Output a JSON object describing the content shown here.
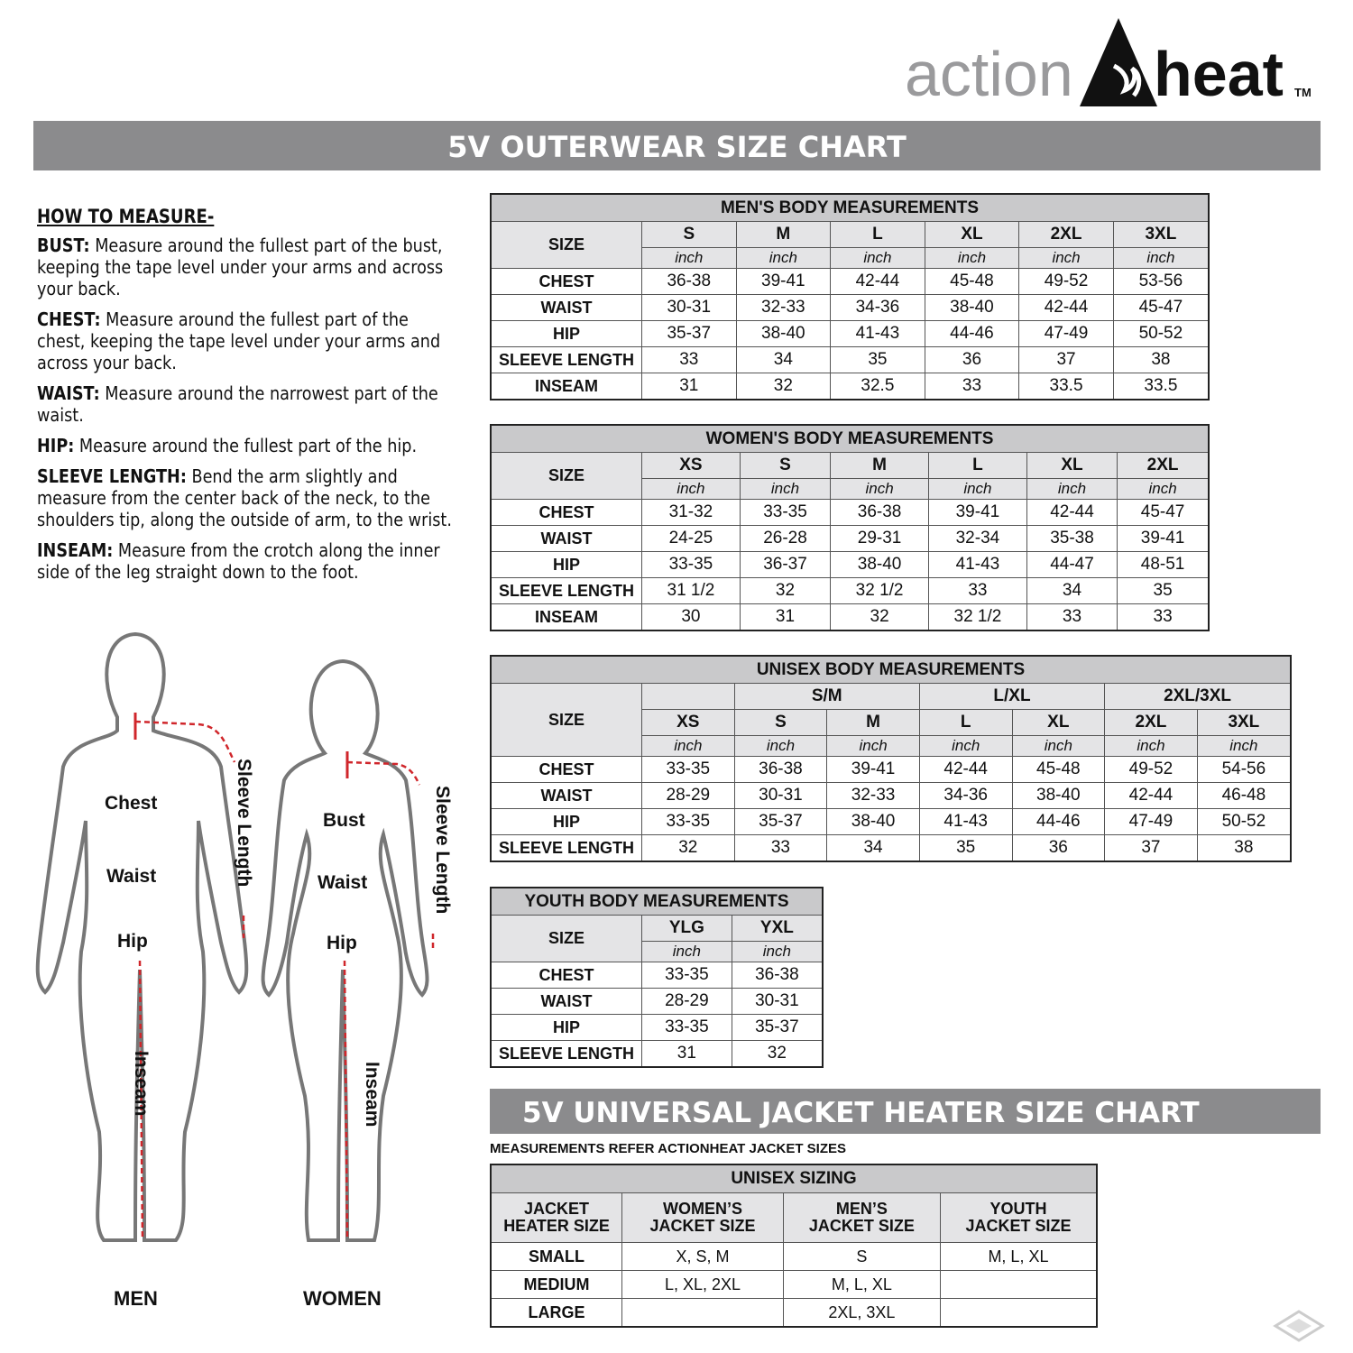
{
  "brand": {
    "word1": "action",
    "word2": "heat",
    "tm": "TM"
  },
  "title": "5V OUTERWEAR SIZE CHART",
  "how_to": {
    "heading": "HOW TO MEASURE-",
    "items": [
      {
        "term": "BUST:",
        "text": "Measure around the fullest part of the bust, keeping the tape level under your arms and across your back."
      },
      {
        "term": "CHEST:",
        "text": "Measure around the fullest part of the chest, keeping the tape level under your arms and across your back."
      },
      {
        "term": "WAIST:",
        "text": "Measure around the narrowest part of the waist."
      },
      {
        "term": "HIP:",
        "text": "Measure around the fullest part of the hip."
      },
      {
        "term": "SLEEVE LENGTH:",
        "text": "Bend the arm slightly and measure from the center back of the neck, to the shoulders tip, along the outside of arm, to the wrist."
      },
      {
        "term": "INSEAM:",
        "text": "Measure from the crotch along the inner side of the leg straight down to the foot."
      }
    ]
  },
  "figures": {
    "men": {
      "caption": "MEN",
      "chest": "Chest",
      "waist": "Waist",
      "hip": "Hip",
      "sleeve": "Sleeve Length",
      "inseam": "Inseam"
    },
    "women": {
      "caption": "WOMEN",
      "bust": "Bust",
      "waist": "Waist",
      "hip": "Hip",
      "sleeve": "Sleeve Length",
      "inseam": "Inseam"
    }
  },
  "tables": {
    "men": {
      "title": "MEN'S BODY MEASUREMENTS",
      "size_label": "SIZE",
      "sizes": [
        "S",
        "M",
        "L",
        "XL",
        "2XL",
        "3XL"
      ],
      "unit": "inch",
      "rows": [
        {
          "label": "CHEST",
          "values": [
            "36-38",
            "39-41",
            "42-44",
            "45-48",
            "49-52",
            "53-56"
          ]
        },
        {
          "label": "WAIST",
          "values": [
            "30-31",
            "32-33",
            "34-36",
            "38-40",
            "42-44",
            "45-47"
          ]
        },
        {
          "label": "HIP",
          "values": [
            "35-37",
            "38-40",
            "41-43",
            "44-46",
            "47-49",
            "50-52"
          ]
        },
        {
          "label": "SLEEVE LENGTH",
          "values": [
            "33",
            "34",
            "35",
            "36",
            "37",
            "38"
          ]
        },
        {
          "label": "INSEAM",
          "values": [
            "31",
            "32",
            "32.5",
            "33",
            "33.5",
            "33.5"
          ]
        }
      ]
    },
    "women": {
      "title": "WOMEN'S BODY MEASUREMENTS",
      "size_label": "SIZE",
      "sizes": [
        "XS",
        "S",
        "M",
        "L",
        "XL",
        "2XL"
      ],
      "unit": "inch",
      "rows": [
        {
          "label": "CHEST",
          "values": [
            "31-32",
            "33-35",
            "36-38",
            "39-41",
            "42-44",
            "45-47"
          ]
        },
        {
          "label": "WAIST",
          "values": [
            "24-25",
            "26-28",
            "29-31",
            "32-34",
            "35-38",
            "39-41"
          ]
        },
        {
          "label": "HIP",
          "values": [
            "33-35",
            "36-37",
            "38-40",
            "41-43",
            "44-47",
            "48-51"
          ]
        },
        {
          "label": "SLEEVE LENGTH",
          "values": [
            "31 1/2",
            "32",
            "32 1/2",
            "33",
            "34",
            "35"
          ]
        },
        {
          "label": "INSEAM",
          "values": [
            "30",
            "31",
            "32",
            "32 1/2",
            "33",
            "33"
          ]
        }
      ]
    },
    "unisex": {
      "title": "UNISEX BODY MEASUREMENTS",
      "size_label": "SIZE",
      "groups": [
        {
          "label": "",
          "span": 1
        },
        {
          "label": "S/M",
          "span": 2
        },
        {
          "label": "L/XL",
          "span": 2
        },
        {
          "label": "2XL/3XL",
          "span": 2
        }
      ],
      "sizes": [
        "XS",
        "S",
        "M",
        "L",
        "XL",
        "2XL",
        "3XL"
      ],
      "unit": "inch",
      "rows": [
        {
          "label": "CHEST",
          "values": [
            "33-35",
            "36-38",
            "39-41",
            "42-44",
            "45-48",
            "49-52",
            "54-56"
          ]
        },
        {
          "label": "WAIST",
          "values": [
            "28-29",
            "30-31",
            "32-33",
            "34-36",
            "38-40",
            "42-44",
            "46-48"
          ]
        },
        {
          "label": "HIP",
          "values": [
            "33-35",
            "35-37",
            "38-40",
            "41-43",
            "44-46",
            "47-49",
            "50-52"
          ]
        },
        {
          "label": "SLEEVE LENGTH",
          "values": [
            "32",
            "33",
            "34",
            "35",
            "36",
            "37",
            "38"
          ]
        }
      ]
    },
    "youth": {
      "title": "YOUTH BODY MEASUREMENTS",
      "size_label": "SIZE",
      "sizes": [
        "YLG",
        "YXL"
      ],
      "unit": "inch",
      "rows": [
        {
          "label": "CHEST",
          "values": [
            "33-35",
            "36-38"
          ]
        },
        {
          "label": "WAIST",
          "values": [
            "28-29",
            "30-31"
          ]
        },
        {
          "label": "HIP",
          "values": [
            "33-35",
            "35-37"
          ]
        },
        {
          "label": "SLEEVE LENGTH",
          "values": [
            "31",
            "32"
          ]
        }
      ]
    }
  },
  "heater": {
    "title": "5V UNIVERSAL JACKET HEATER SIZE CHART",
    "subtitle": "MEASUREMENTS REFER ACTIONHEAT JACKET SIZES",
    "table_title": "UNISEX SIZING",
    "headers": [
      [
        "JACKET",
        "HEATER SIZE"
      ],
      [
        "WOMEN’S",
        "JACKET SIZE"
      ],
      [
        "MEN’S",
        "JACKET SIZE"
      ],
      [
        "YOUTH",
        "JACKET SIZE"
      ]
    ],
    "rows": [
      [
        "SMALL",
        "X, S, M",
        "S",
        "M, L, XL"
      ],
      [
        "MEDIUM",
        "L, XL, 2XL",
        "M, L, XL",
        ""
      ],
      [
        "LARGE",
        "",
        "2XL, 3XL",
        ""
      ]
    ]
  },
  "colors": {
    "banner": "#8b8b8d",
    "table_title": "#c9c9cb",
    "arrow": "#d0262b",
    "logo_gray": "#9a9a9c"
  }
}
